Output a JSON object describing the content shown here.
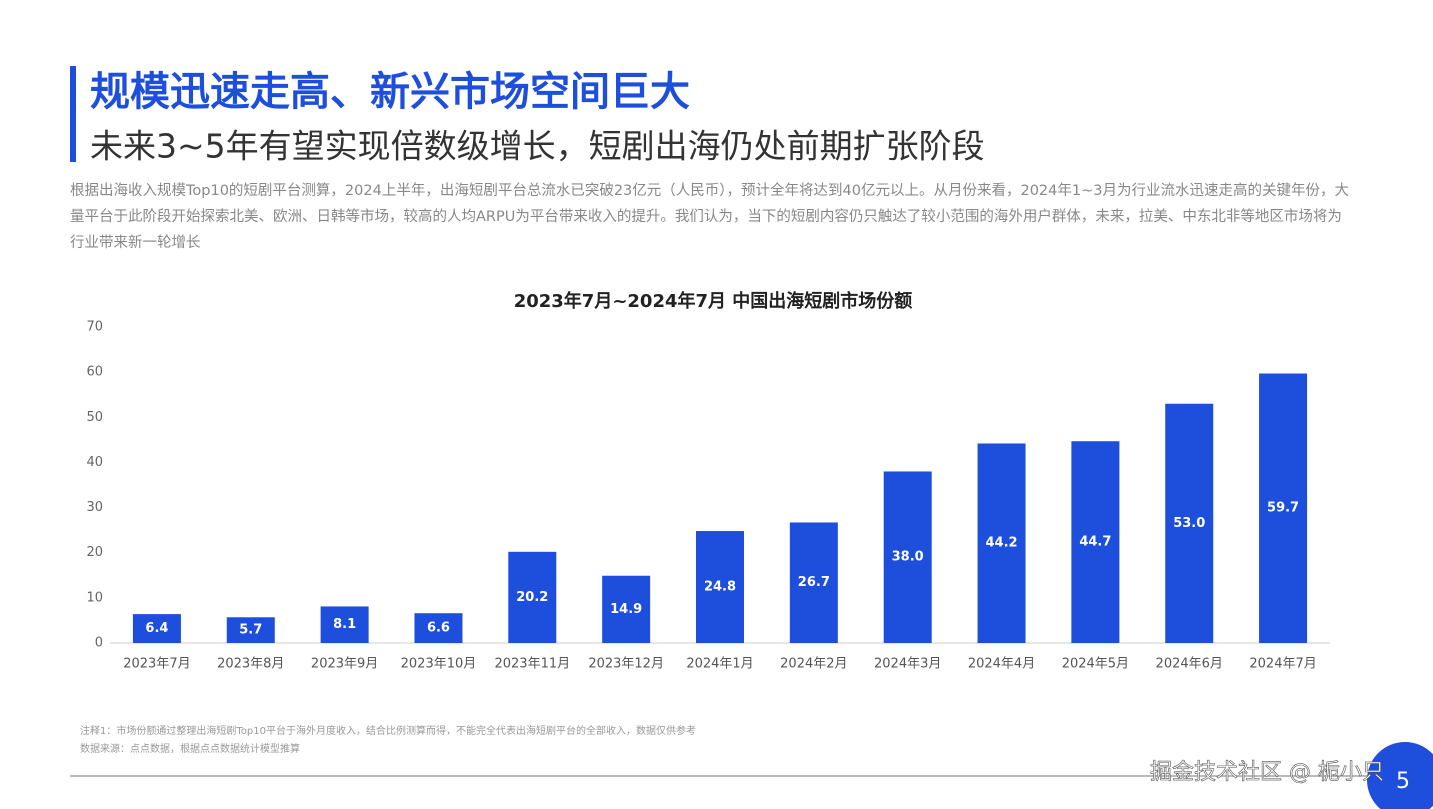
{
  "header": {
    "title": "规模迅速走高、新兴市场空间巨大",
    "subtitle": "未来3~5年有望实现倍数级增长，短剧出海仍处前期扩张阶段",
    "paragraph": "根据出海收入规模Top10的短剧平台测算，2024上半年，出海短剧平台总流水已突破23亿元（人民币），预计全年将达到40亿元以上。从月份来看，2024年1~3月为行业流水迅速走高的关键年份，大量平台于此阶段开始探索北美、欧洲、日韩等市场，较高的人均ARPU为平台带来收入的提升。我们认为，当下的短剧内容仍只触达了较小范围的海外用户群体，未来，拉美、中东北非等地区市场将为行业带来新一轮增长"
  },
  "chart_data": {
    "type": "bar",
    "title": "2023年7月~2024年7月 中国出海短剧市场份额",
    "categories": [
      "2023年7月",
      "2023年8月",
      "2023年9月",
      "2023年10月",
      "2023年11月",
      "2023年12月",
      "2024年1月",
      "2024年2月",
      "2024年3月",
      "2024年4月",
      "2024年5月",
      "2024年6月",
      "2024年7月"
    ],
    "values": [
      6.4,
      5.7,
      8.1,
      6.6,
      20.2,
      14.9,
      24.8,
      26.7,
      38.0,
      44.2,
      44.7,
      53.0,
      59.7
    ],
    "value_labels": [
      "6.4",
      "5.7",
      "8.1",
      "6.6",
      "20.2",
      "14.9",
      "24.8",
      "26.7",
      "38.0",
      "44.2",
      "44.7",
      "53.0",
      "59.7"
    ],
    "color": "#1e4fdc",
    "ylim": [
      0,
      70
    ],
    "yticks": [
      0,
      10,
      20,
      30,
      40,
      50,
      60,
      70
    ],
    "grid": false
  },
  "footer": {
    "note": "注释1：市场份额通过整理出海短剧Top10平台于海外月度收入，结合比例测算而得，不能完全代表出海短剧平台的全部收入，数据仅供参考",
    "source": "数据来源：点点数据，根据点点数据统计模型推算",
    "watermark": "掘金技术社区 @ 栀小只",
    "page_number": "5"
  }
}
